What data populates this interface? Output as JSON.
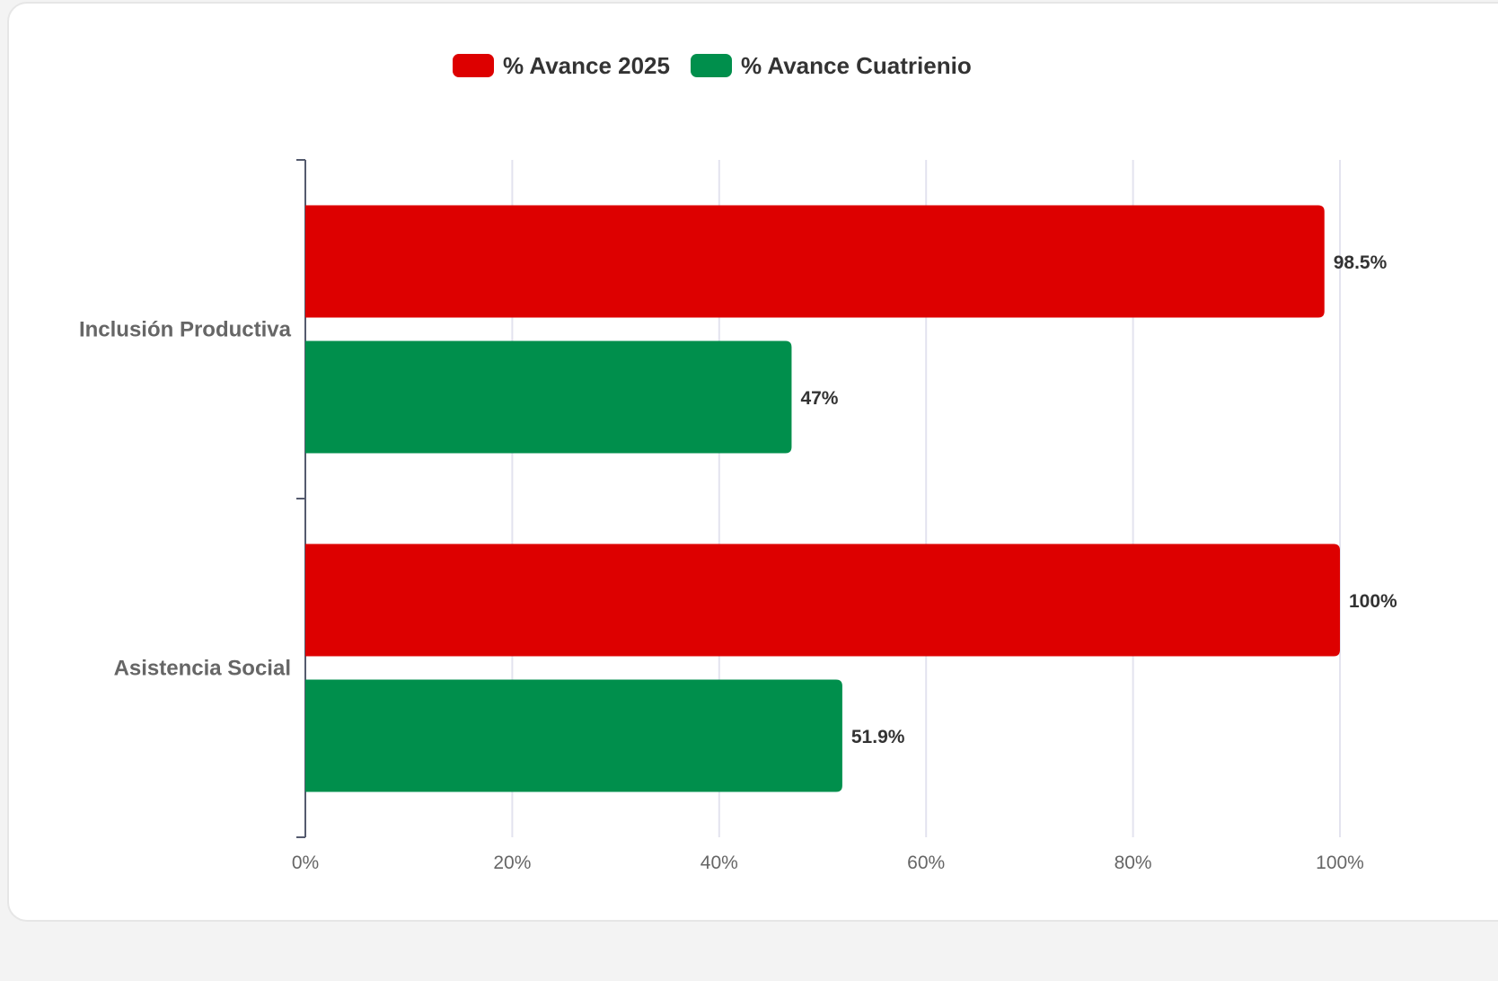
{
  "chart_data": {
    "type": "bar",
    "orientation": "horizontal",
    "categories": [
      "Inclusión Productiva",
      "Asistencia Social"
    ],
    "series": [
      {
        "name": "% Avance 2025",
        "color": "#dd0000",
        "values": [
          98.5,
          100
        ],
        "labels": [
          "98.5%",
          "100%"
        ]
      },
      {
        "name": "% Avance Cuatrienio",
        "color": "#008f4c",
        "values": [
          47,
          51.9
        ],
        "labels": [
          "47%",
          "51.9%"
        ]
      }
    ],
    "xlim": [
      0,
      100
    ],
    "xticks": [
      0,
      20,
      40,
      60,
      80,
      100
    ],
    "xtick_labels": [
      "0%",
      "20%",
      "40%",
      "60%",
      "80%",
      "100%"
    ],
    "grid": true,
    "legend_position": "top-center",
    "title": "",
    "xlabel": "",
    "ylabel": ""
  }
}
